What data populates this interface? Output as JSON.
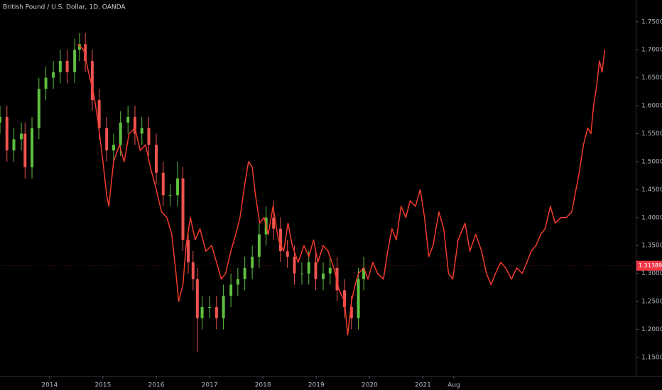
{
  "chart_data": {
    "type": "candlestick",
    "title": "British Pound / U.S. Dollar, 1D, OANDA",
    "up_color": "#5fbf3f",
    "down_color": "#ef5350",
    "x": [
      2013.07,
      2013.2,
      2013.33,
      2013.47,
      2013.54,
      2013.67,
      2013.8,
      2013.93,
      2014.07,
      2014.2,
      2014.33,
      2014.47,
      2014.56,
      2014.67,
      2014.8,
      2014.93,
      2015.07,
      2015.2,
      2015.33,
      2015.47,
      2015.6,
      2015.73,
      2015.86,
      2016.0,
      2016.13,
      2016.26,
      2016.4,
      2016.5,
      2016.6,
      2016.69,
      2016.77,
      2016.86,
      2017.0,
      2017.13,
      2017.26,
      2017.4,
      2017.53,
      2017.66,
      2017.8,
      2017.93,
      2018.06,
      2018.2,
      2018.33,
      2018.46,
      2018.59,
      2018.73,
      2018.86,
      2018.99,
      2019.13,
      2019.26,
      2019.39,
      2019.53,
      2019.66,
      2019.79,
      2019.89
    ],
    "open": [
      1.57,
      1.58,
      1.52,
      1.54,
      1.55,
      1.49,
      1.56,
      1.63,
      1.65,
      1.66,
      1.68,
      1.66,
      1.7,
      1.71,
      1.68,
      1.61,
      1.56,
      1.52,
      1.53,
      1.57,
      1.58,
      1.55,
      1.56,
      1.53,
      1.48,
      1.44,
      1.44,
      1.47,
      1.36,
      1.32,
      1.29,
      1.22,
      1.24,
      1.24,
      1.22,
      1.26,
      1.28,
      1.29,
      1.31,
      1.33,
      1.37,
      1.4,
      1.38,
      1.34,
      1.33,
      1.3,
      1.3,
      1.32,
      1.29,
      1.3,
      1.31,
      1.27,
      1.24,
      1.22,
      1.29
    ],
    "high": [
      1.6,
      1.6,
      1.56,
      1.57,
      1.57,
      1.58,
      1.65,
      1.67,
      1.68,
      1.7,
      1.7,
      1.72,
      1.73,
      1.73,
      1.7,
      1.63,
      1.58,
      1.55,
      1.59,
      1.6,
      1.6,
      1.58,
      1.58,
      1.55,
      1.5,
      1.46,
      1.5,
      1.49,
      1.38,
      1.34,
      1.31,
      1.26,
      1.26,
      1.26,
      1.28,
      1.3,
      1.31,
      1.33,
      1.35,
      1.39,
      1.42,
      1.43,
      1.4,
      1.36,
      1.35,
      1.32,
      1.34,
      1.34,
      1.32,
      1.33,
      1.33,
      1.29,
      1.26,
      1.31,
      1.33
    ],
    "low": [
      1.55,
      1.5,
      1.5,
      1.52,
      1.47,
      1.47,
      1.54,
      1.61,
      1.63,
      1.64,
      1.64,
      1.64,
      1.68,
      1.66,
      1.59,
      1.54,
      1.5,
      1.5,
      1.51,
      1.55,
      1.53,
      1.53,
      1.51,
      1.46,
      1.42,
      1.42,
      1.42,
      1.34,
      1.3,
      1.27,
      1.16,
      1.2,
      1.22,
      1.2,
      1.2,
      1.24,
      1.26,
      1.27,
      1.29,
      1.31,
      1.35,
      1.36,
      1.32,
      1.31,
      1.28,
      1.28,
      1.28,
      1.27,
      1.27,
      1.28,
      1.25,
      1.22,
      1.2,
      1.2,
      1.27
    ],
    "close": [
      1.58,
      1.52,
      1.54,
      1.55,
      1.49,
      1.56,
      1.63,
      1.65,
      1.66,
      1.68,
      1.66,
      1.7,
      1.71,
      1.68,
      1.61,
      1.56,
      1.52,
      1.53,
      1.57,
      1.58,
      1.55,
      1.56,
      1.53,
      1.48,
      1.44,
      1.44,
      1.47,
      1.36,
      1.32,
      1.29,
      1.22,
      1.24,
      1.24,
      1.22,
      1.26,
      1.28,
      1.29,
      1.31,
      1.33,
      1.37,
      1.4,
      1.38,
      1.34,
      1.33,
      1.3,
      1.3,
      1.32,
      1.29,
      1.3,
      1.31,
      1.27,
      1.24,
      1.22,
      1.29,
      1.31
    ],
    "overlay": {
      "type": "line",
      "color": "#f23b2c",
      "x": [
        2014.53,
        2014.64,
        2014.73,
        2014.83,
        2014.91,
        2015.0,
        2015.07,
        2015.11,
        2015.2,
        2015.31,
        2015.4,
        2015.49,
        2015.6,
        2015.7,
        2015.8,
        2015.89,
        2016.0,
        2016.1,
        2016.2,
        2016.29,
        2016.37,
        2016.42,
        2016.5,
        2016.56,
        2016.64,
        2016.73,
        2016.82,
        2016.93,
        2017.04,
        2017.13,
        2017.22,
        2017.3,
        2017.4,
        2017.49,
        2017.57,
        2017.66,
        2017.73,
        2017.8,
        2017.86,
        2017.94,
        2018.02,
        2018.1,
        2018.19,
        2018.29,
        2018.39,
        2018.47,
        2018.55,
        2018.66,
        2018.77,
        2018.86,
        2018.95,
        2019.03,
        2019.13,
        2019.22,
        2019.33,
        2019.43,
        2019.53,
        2019.59,
        2019.66,
        2019.73,
        2019.79,
        2019.89,
        2019.97,
        2020.06,
        2020.15,
        2020.26,
        2020.34,
        2020.42,
        2020.5,
        2020.59,
        2020.68,
        2020.76,
        2020.86,
        2020.95,
        2021.03,
        2021.11,
        2021.19,
        2021.3,
        2021.39,
        2021.48,
        2021.56,
        2021.66,
        2021.79,
        2021.88,
        2021.99,
        2022.1,
        2022.19,
        2022.28,
        2022.36,
        2022.46,
        2022.55,
        2022.66,
        2022.76,
        2022.86,
        2022.95,
        2023.03,
        2023.12,
        2023.21,
        2023.29,
        2023.39,
        2023.48,
        2023.59,
        2023.69,
        2023.79,
        2023.85,
        2023.93,
        2024.01,
        2024.09,
        2024.15,
        2024.2,
        2024.25,
        2024.31,
        2024.36,
        2024.41
      ],
      "values": [
        1.71,
        1.7,
        1.66,
        1.62,
        1.57,
        1.5,
        1.44,
        1.42,
        1.5,
        1.53,
        1.5,
        1.55,
        1.56,
        1.52,
        1.53,
        1.49,
        1.45,
        1.41,
        1.4,
        1.37,
        1.3,
        1.25,
        1.28,
        1.35,
        1.4,
        1.36,
        1.38,
        1.34,
        1.35,
        1.32,
        1.29,
        1.3,
        1.34,
        1.37,
        1.4,
        1.46,
        1.5,
        1.49,
        1.44,
        1.39,
        1.4,
        1.37,
        1.42,
        1.36,
        1.34,
        1.39,
        1.35,
        1.32,
        1.35,
        1.33,
        1.36,
        1.32,
        1.35,
        1.34,
        1.31,
        1.27,
        1.25,
        1.19,
        1.25,
        1.28,
        1.3,
        1.31,
        1.29,
        1.32,
        1.3,
        1.29,
        1.34,
        1.38,
        1.36,
        1.42,
        1.4,
        1.43,
        1.42,
        1.45,
        1.4,
        1.33,
        1.35,
        1.41,
        1.38,
        1.3,
        1.29,
        1.36,
        1.39,
        1.34,
        1.37,
        1.34,
        1.3,
        1.28,
        1.3,
        1.32,
        1.31,
        1.29,
        1.31,
        1.3,
        1.32,
        1.34,
        1.35,
        1.37,
        1.38,
        1.42,
        1.39,
        1.4,
        1.4,
        1.41,
        1.44,
        1.48,
        1.53,
        1.56,
        1.55,
        1.6,
        1.63,
        1.68,
        1.66,
        1.7
      ]
    },
    "last_price": 1.31389,
    "last_price_color": "#f23645",
    "xlim": [
      2013.07,
      2024.99
    ],
    "xticks": [
      2014,
      2015,
      2016,
      2017,
      2018,
      2019,
      2020,
      2021,
      {
        "value": 2021.58,
        "label": "Aug"
      }
    ],
    "ylim": [
      1.117,
      1.789
    ],
    "yticks": [
      {
        "value": 1.15,
        "label": "1.15000"
      },
      {
        "value": 1.2,
        "label": "1.20000"
      },
      {
        "value": 1.25,
        "label": "1.25000"
      },
      {
        "value": 1.3,
        "label": "1.30000"
      },
      {
        "value": 1.35,
        "label": "1.35000"
      },
      {
        "value": 1.4,
        "label": "1.40000"
      },
      {
        "value": 1.45,
        "label": "1.45000"
      },
      {
        "value": 1.5,
        "label": "1.50000"
      },
      {
        "value": 1.55,
        "label": "1.55000"
      },
      {
        "value": 1.6,
        "label": "1.60000"
      },
      {
        "value": 1.65,
        "label": "1.65000"
      },
      {
        "value": 1.7,
        "label": "1.70000"
      },
      {
        "value": 1.75,
        "label": "1.75000"
      }
    ]
  }
}
